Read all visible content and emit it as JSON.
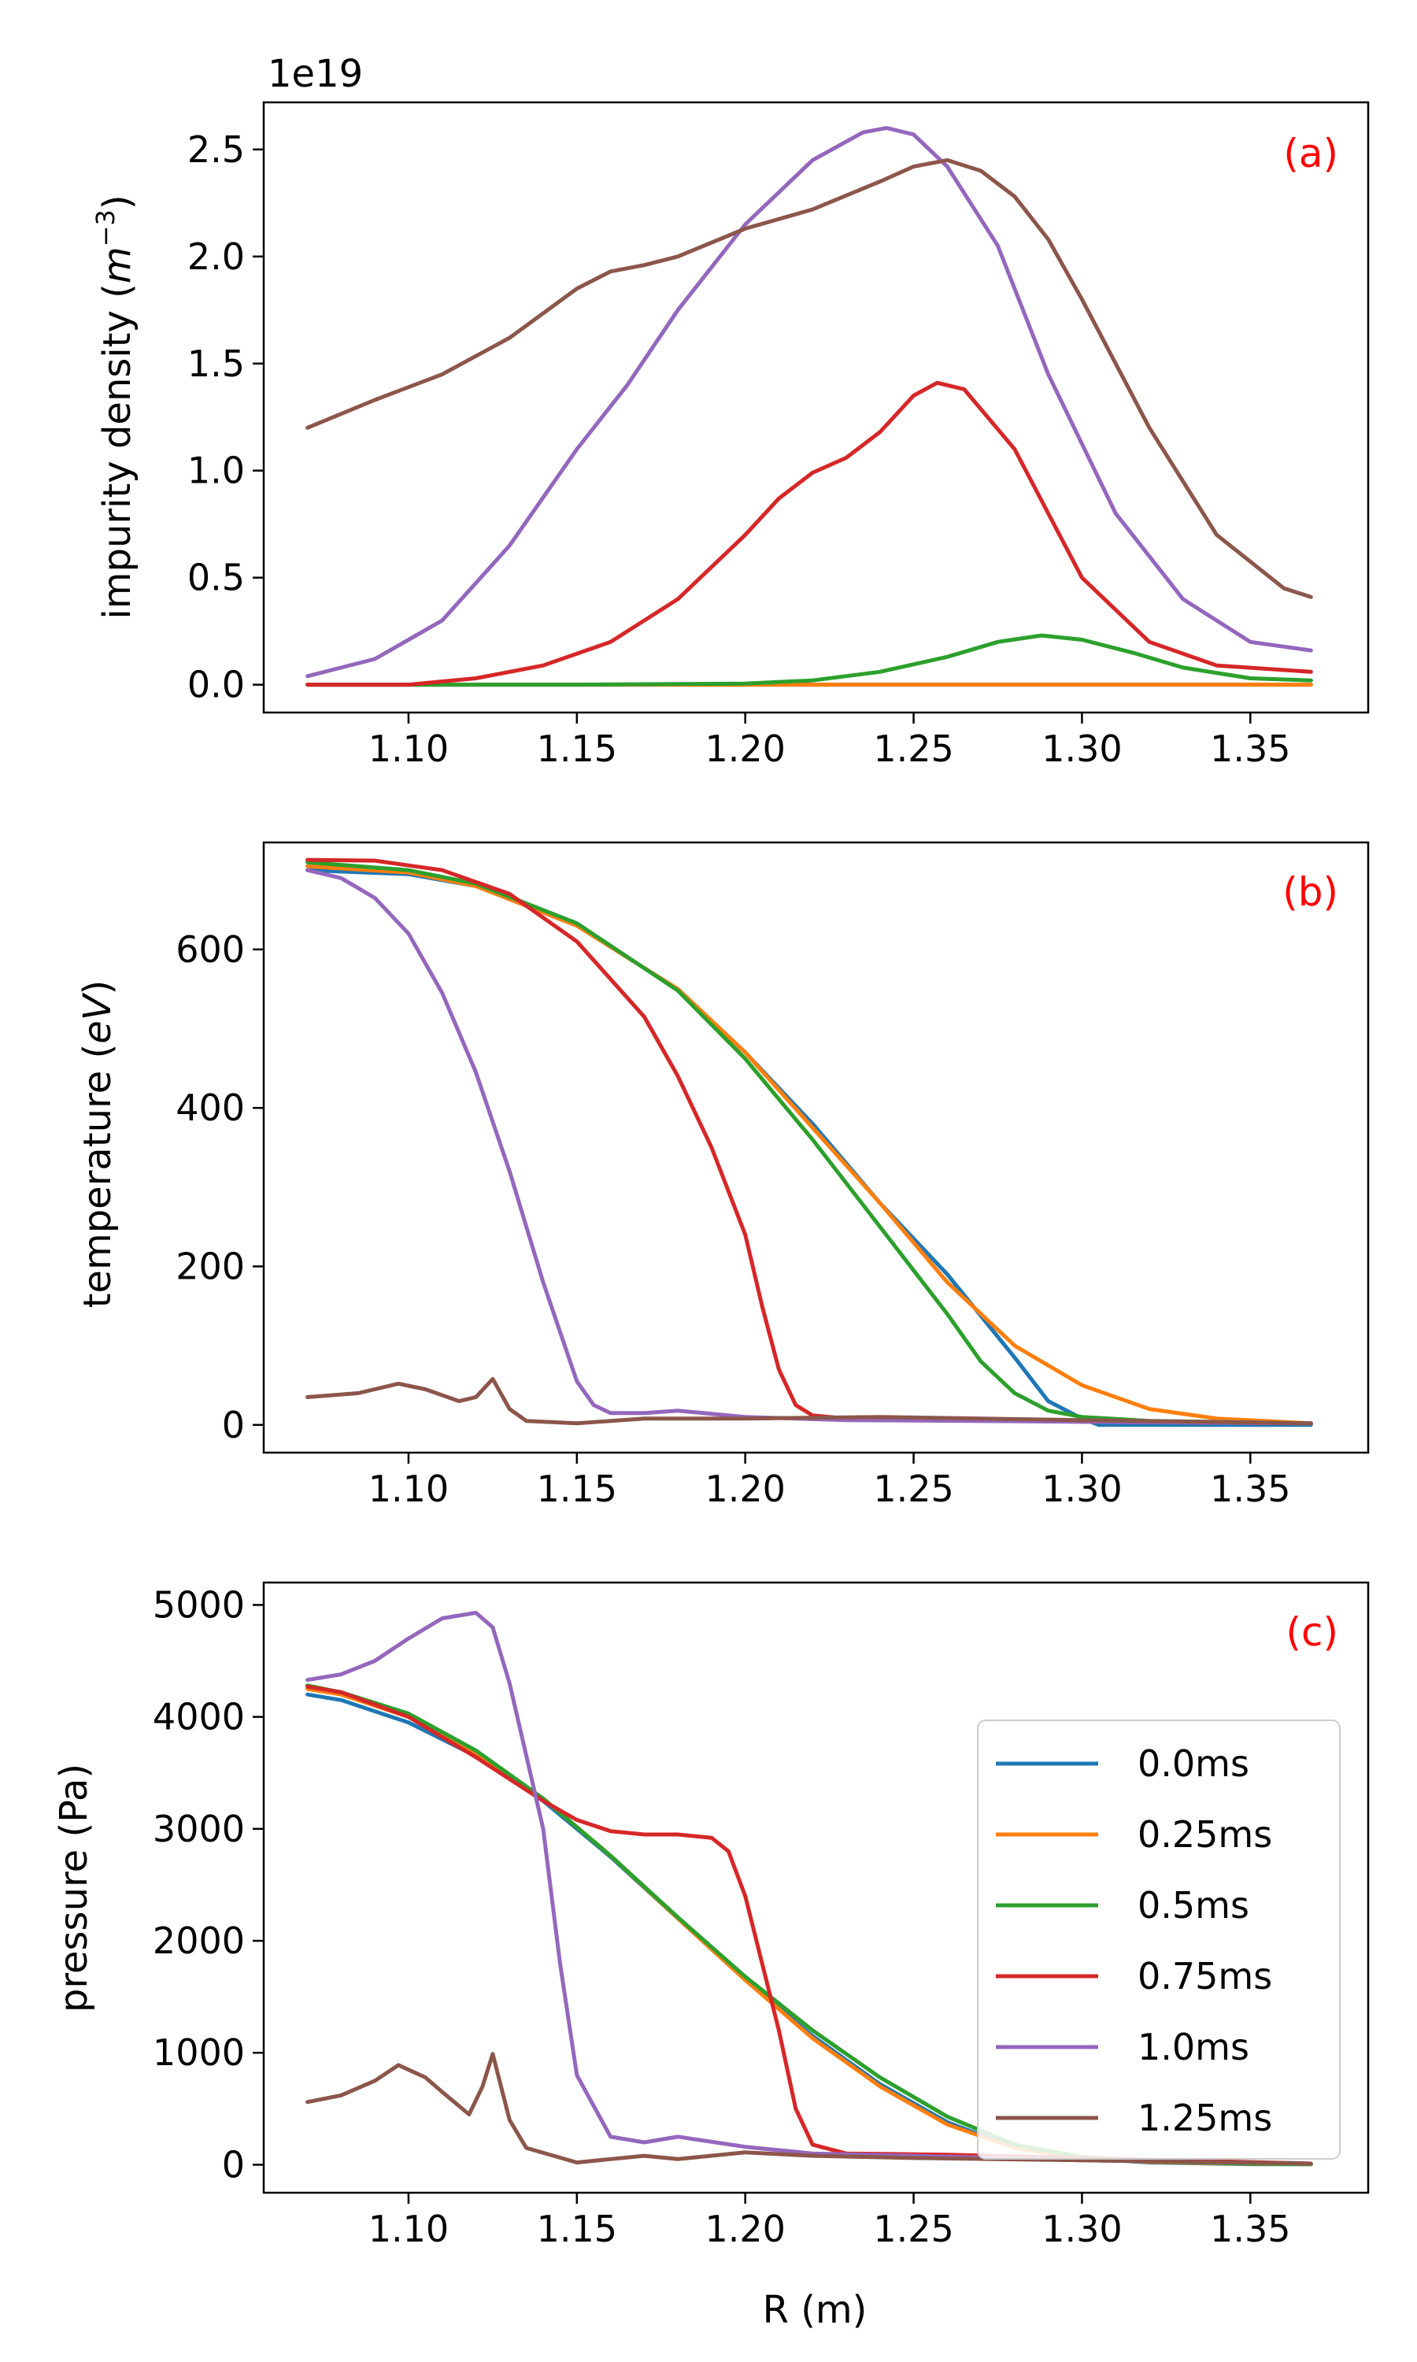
{
  "chart_data": {
    "type": "line",
    "x_label": "R (m)",
    "xlim": [
      1.057,
      1.385
    ],
    "x_ticks": [
      1.1,
      1.15,
      1.2,
      1.25,
      1.3,
      1.35
    ],
    "x_tick_labels": [
      "1.10",
      "1.15",
      "1.20",
      "1.25",
      "1.30",
      "1.35"
    ],
    "series_styles": [
      {
        "name": "0.0ms",
        "color": "#1f77b4"
      },
      {
        "name": "0.25ms",
        "color": "#ff7f0e"
      },
      {
        "name": "0.5ms",
        "color": "#2ca02c"
      },
      {
        "name": "0.75ms",
        "color": "#d62728"
      },
      {
        "name": "1.0ms",
        "color": "#9467bd"
      },
      {
        "name": "1.25ms",
        "color": "#8c564b"
      }
    ],
    "legend": {
      "location": "right",
      "panel": "c"
    },
    "panels": [
      {
        "id": "a",
        "tag": "(a)",
        "ylabel_prefix": "impurity density ",
        "ylabel_unit_base": "m",
        "ylabel_unit_exp": "−3",
        "ylabel_suffix": "",
        "offset_text": "1e19",
        "ylim": [
          -0.13,
          2.72
        ],
        "y_ticks": [
          0.0,
          0.5,
          1.0,
          1.5,
          2.0,
          2.5
        ],
        "y_tick_labels": [
          "0.0",
          "0.5",
          "1.0",
          "1.5",
          "2.0",
          "2.5"
        ],
        "series": [
          {
            "name": "0.0ms",
            "x": [
              1.07,
              1.368
            ],
            "y": [
              0.0,
              0.0
            ]
          },
          {
            "name": "0.25ms",
            "x": [
              1.07,
              1.368
            ],
            "y": [
              0.0,
              0.0
            ]
          },
          {
            "name": "0.5ms",
            "x": [
              1.07,
              1.1,
              1.15,
              1.2,
              1.22,
              1.24,
              1.26,
              1.275,
              1.288,
              1.3,
              1.315,
              1.33,
              1.35,
              1.368
            ],
            "y": [
              0.0,
              0.0,
              0.0,
              0.005,
              0.02,
              0.06,
              0.13,
              0.2,
              0.23,
              0.21,
              0.15,
              0.08,
              0.03,
              0.02
            ]
          },
          {
            "name": "0.75ms",
            "x": [
              1.07,
              1.1,
              1.12,
              1.14,
              1.16,
              1.18,
              1.2,
              1.21,
              1.22,
              1.23,
              1.24,
              1.25,
              1.257,
              1.265,
              1.28,
              1.29,
              1.3,
              1.32,
              1.34,
              1.368
            ],
            "y": [
              0.0,
              0.0,
              0.03,
              0.09,
              0.2,
              0.4,
              0.7,
              0.87,
              0.99,
              1.06,
              1.18,
              1.35,
              1.41,
              1.38,
              1.1,
              0.8,
              0.5,
              0.2,
              0.09,
              0.06
            ]
          },
          {
            "name": "1.0ms",
            "x": [
              1.07,
              1.09,
              1.11,
              1.13,
              1.15,
              1.165,
              1.18,
              1.2,
              1.22,
              1.235,
              1.242,
              1.25,
              1.26,
              1.275,
              1.29,
              1.31,
              1.33,
              1.35,
              1.368
            ],
            "y": [
              0.04,
              0.12,
              0.3,
              0.65,
              1.1,
              1.4,
              1.75,
              2.15,
              2.45,
              2.58,
              2.6,
              2.57,
              2.42,
              2.05,
              1.45,
              0.8,
              0.4,
              0.2,
              0.16
            ]
          },
          {
            "name": "1.25ms",
            "x": [
              1.07,
              1.09,
              1.11,
              1.13,
              1.15,
              1.16,
              1.17,
              1.18,
              1.2,
              1.22,
              1.24,
              1.25,
              1.26,
              1.27,
              1.28,
              1.29,
              1.3,
              1.32,
              1.34,
              1.36,
              1.368
            ],
            "y": [
              1.2,
              1.33,
              1.45,
              1.62,
              1.85,
              1.93,
              1.96,
              2.0,
              2.13,
              2.22,
              2.35,
              2.42,
              2.45,
              2.4,
              2.28,
              2.08,
              1.8,
              1.2,
              0.7,
              0.45,
              0.41
            ]
          }
        ]
      },
      {
        "id": "b",
        "tag": "(b)",
        "ylabel_prefix": "temperature ",
        "ylabel_unit_base": "eV",
        "ylabel_unit_exp": "",
        "ylabel_suffix": "",
        "offset_text": "",
        "ylim": [
          -35,
          735
        ],
        "y_ticks": [
          0,
          200,
          400,
          600
        ],
        "y_tick_labels": [
          "0",
          "200",
          "400",
          "600"
        ],
        "series": [
          {
            "name": "0.0ms",
            "x": [
              1.07,
              1.1,
              1.12,
              1.15,
              1.18,
              1.2,
              1.22,
              1.24,
              1.26,
              1.28,
              1.29,
              1.3,
              1.305,
              1.32,
              1.35,
              1.368
            ],
            "y": [
              700,
              695,
              680,
              630,
              550,
              470,
              380,
              280,
              190,
              85,
              30,
              8,
              0,
              0,
              0,
              0
            ]
          },
          {
            "name": "0.25ms",
            "x": [
              1.07,
              1.1,
              1.12,
              1.15,
              1.18,
              1.2,
              1.22,
              1.24,
              1.26,
              1.28,
              1.3,
              1.32,
              1.34,
              1.368
            ],
            "y": [
              705,
              697,
              680,
              630,
              550,
              470,
              375,
              280,
              180,
              100,
              50,
              20,
              8,
              2
            ]
          },
          {
            "name": "0.5ms",
            "x": [
              1.07,
              1.1,
              1.12,
              1.15,
              1.18,
              1.2,
              1.22,
              1.24,
              1.26,
              1.27,
              1.28,
              1.29,
              1.3,
              1.32,
              1.368
            ],
            "y": [
              710,
              700,
              683,
              633,
              548,
              462,
              360,
              250,
              140,
              80,
              40,
              18,
              10,
              5,
              2
            ]
          },
          {
            "name": "0.75ms",
            "x": [
              1.07,
              1.09,
              1.11,
              1.13,
              1.15,
              1.17,
              1.18,
              1.19,
              1.2,
              1.205,
              1.21,
              1.215,
              1.22,
              1.23,
              1.26,
              1.3,
              1.368
            ],
            "y": [
              713,
              712,
              700,
              670,
              610,
              515,
              440,
              350,
              240,
              150,
              70,
              25,
              12,
              8,
              6,
              4,
              2
            ]
          },
          {
            "name": "1.0ms",
            "x": [
              1.07,
              1.08,
              1.09,
              1.1,
              1.11,
              1.12,
              1.13,
              1.14,
              1.15,
              1.155,
              1.16,
              1.17,
              1.18,
              1.2,
              1.23,
              1.3,
              1.368
            ],
            "y": [
              700,
              690,
              665,
              620,
              545,
              445,
              320,
              180,
              55,
              25,
              15,
              15,
              18,
              10,
              6,
              4,
              2
            ]
          },
          {
            "name": "1.25ms",
            "x": [
              1.07,
              1.085,
              1.09,
              1.097,
              1.105,
              1.115,
              1.12,
              1.125,
              1.13,
              1.135,
              1.15,
              1.17,
              1.2,
              1.24,
              1.3,
              1.368
            ],
            "y": [
              35,
              40,
              45,
              52,
              45,
              30,
              35,
              58,
              20,
              5,
              2,
              8,
              8,
              10,
              6,
              2
            ]
          }
        ]
      },
      {
        "id": "c",
        "tag": "(c)",
        "ylabel_prefix": "pressure (Pa)",
        "ylabel_unit_base": "",
        "ylabel_unit_exp": "",
        "ylabel_suffix": "",
        "offset_text": "",
        "ylim": [
          -250,
          5200
        ],
        "y_ticks": [
          0,
          1000,
          2000,
          3000,
          4000,
          5000
        ],
        "y_tick_labels": [
          "0",
          "1000",
          "2000",
          "3000",
          "4000",
          "5000"
        ],
        "series": [
          {
            "name": "0.0ms",
            "x": [
              1.07,
              1.08,
              1.1,
              1.12,
              1.14,
              1.16,
              1.18,
              1.2,
              1.22,
              1.24,
              1.26,
              1.28,
              1.3,
              1.32,
              1.35,
              1.368
            ],
            "y": [
              4200,
              4150,
              3950,
              3650,
              3250,
              2750,
              2200,
              1650,
              1150,
              720,
              380,
              150,
              60,
              20,
              5,
              5
            ]
          },
          {
            "name": "0.25ms",
            "x": [
              1.07,
              1.08,
              1.1,
              1.12,
              1.14,
              1.16,
              1.18,
              1.2,
              1.22,
              1.24,
              1.26,
              1.28,
              1.3,
              1.32,
              1.35,
              1.368
            ],
            "y": [
              4250,
              4200,
              4000,
              3680,
              3270,
              2760,
              2200,
              1650,
              1130,
              700,
              360,
              150,
              60,
              25,
              8,
              5
            ]
          },
          {
            "name": "0.5ms",
            "x": [
              1.07,
              1.08,
              1.1,
              1.12,
              1.14,
              1.16,
              1.18,
              1.2,
              1.22,
              1.24,
              1.26,
              1.28,
              1.3,
              1.32,
              1.35,
              1.368
            ],
            "y": [
              4280,
              4220,
              4030,
              3700,
              3270,
              2760,
              2210,
              1680,
              1200,
              780,
              430,
              180,
              70,
              30,
              10,
              5
            ]
          },
          {
            "name": "0.75ms",
            "x": [
              1.07,
              1.08,
              1.1,
              1.12,
              1.14,
              1.15,
              1.16,
              1.17,
              1.18,
              1.19,
              1.195,
              1.2,
              1.21,
              1.215,
              1.22,
              1.23,
              1.26,
              1.3,
              1.368
            ],
            "y": [
              4270,
              4220,
              4000,
              3640,
              3250,
              3080,
              2980,
              2950,
              2950,
              2920,
              2800,
              2400,
              1200,
              500,
              180,
              100,
              90,
              60,
              10
            ]
          },
          {
            "name": "1.0ms",
            "x": [
              1.07,
              1.08,
              1.09,
              1.1,
              1.11,
              1.12,
              1.125,
              1.13,
              1.14,
              1.145,
              1.15,
              1.16,
              1.17,
              1.18,
              1.2,
              1.22,
              1.25,
              1.3,
              1.368
            ],
            "y": [
              4330,
              4380,
              4500,
              4700,
              4880,
              4930,
              4800,
              4300,
              3000,
              1800,
              800,
              250,
              200,
              250,
              160,
              100,
              80,
              40,
              10
            ]
          },
          {
            "name": "1.25ms",
            "x": [
              1.07,
              1.08,
              1.09,
              1.097,
              1.105,
              1.11,
              1.118,
              1.122,
              1.125,
              1.13,
              1.135,
              1.15,
              1.16,
              1.17,
              1.18,
              1.2,
              1.22,
              1.25,
              1.3,
              1.368
            ],
            "y": [
              560,
              620,
              750,
              890,
              780,
              650,
              450,
              700,
              990,
              400,
              150,
              20,
              50,
              80,
              50,
              110,
              80,
              60,
              40,
              10
            ]
          }
        ]
      }
    ]
  }
}
